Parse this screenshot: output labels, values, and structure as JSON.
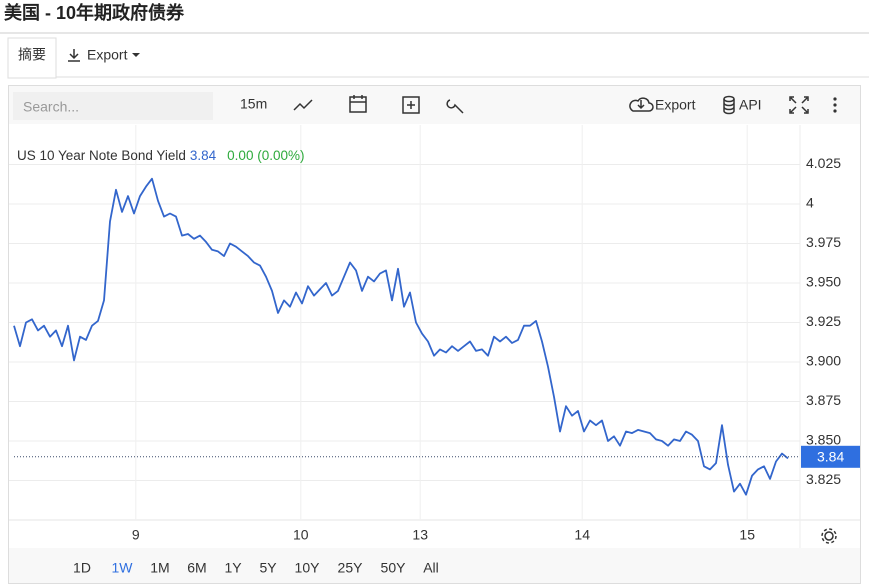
{
  "title": "美国 - 10年期政府债券",
  "tabs": [
    "摘要",
    "Export"
  ],
  "toolbar": {
    "search_placeholder": "Search...",
    "interval": "15m",
    "export": "Export",
    "api": "API"
  },
  "ranges": [
    "1D",
    "1W",
    "1M",
    "6M",
    "1Y",
    "5Y",
    "10Y",
    "25Y",
    "50Y",
    "All"
  ],
  "selected_range": "1W",
  "chart_data": {
    "type": "line",
    "series": [
      {
        "name": "US 10 Year Note Bond Yield",
        "color": "#3366cc",
        "last_value": 3.84,
        "change_label": "0.00 (0.00%)",
        "x": [
          0,
          1,
          2,
          3,
          4,
          5,
          6,
          7,
          8,
          9,
          10,
          11,
          12,
          13,
          14,
          15,
          16,
          17,
          18,
          19,
          20,
          21,
          22,
          23,
          24,
          25,
          26,
          27,
          28,
          29,
          30,
          31,
          32,
          33,
          34,
          35,
          36,
          37,
          38,
          39,
          40,
          41,
          42,
          43,
          44,
          45,
          46,
          47,
          48,
          49,
          50,
          51,
          52,
          53,
          54,
          55,
          56,
          57,
          58,
          59,
          60,
          61,
          62,
          63,
          64,
          65,
          66,
          67,
          68,
          69,
          70,
          71,
          72,
          73,
          74,
          75,
          76,
          77,
          78,
          79,
          80,
          81,
          82,
          83,
          84,
          85,
          86,
          87,
          88,
          89,
          90,
          91,
          92,
          93,
          94,
          95,
          96,
          97,
          98,
          99,
          100,
          101,
          102,
          103,
          104,
          105,
          106,
          107,
          108,
          109,
          110,
          111,
          112,
          113,
          114,
          115,
          116,
          117,
          118,
          119,
          120,
          121,
          122,
          123,
          124,
          125,
          126,
          127,
          128,
          129
        ],
        "values": [
          3.923,
          3.91,
          3.925,
          3.927,
          3.92,
          3.923,
          3.916,
          3.92,
          3.91,
          3.923,
          3.901,
          3.916,
          3.914,
          3.923,
          3.926,
          3.939,
          3.989,
          4.009,
          3.995,
          4.005,
          3.994,
          4.005,
          4.011,
          4.016,
          4.002,
          3.992,
          3.994,
          3.992,
          3.98,
          3.981,
          3.978,
          3.98,
          3.976,
          3.971,
          3.97,
          3.967,
          3.975,
          3.973,
          3.97,
          3.967,
          3.963,
          3.961,
          3.954,
          3.945,
          3.931,
          3.939,
          3.935,
          3.944,
          3.937,
          3.948,
          3.942,
          3.946,
          3.95,
          3.942,
          3.945,
          3.954,
          3.963,
          3.958,
          3.945,
          3.954,
          3.951,
          3.956,
          3.958,
          3.939,
          3.959,
          3.935,
          3.944,
          3.925,
          3.918,
          3.913,
          3.904,
          3.908,
          3.906,
          3.91,
          3.907,
          3.91,
          3.913,
          3.907,
          3.908,
          3.904,
          3.916,
          3.913,
          3.916,
          3.912,
          3.914,
          3.923,
          3.923,
          3.926,
          3.913,
          3.897,
          3.878,
          3.856,
          3.872,
          3.866,
          3.869,
          3.856,
          3.863,
          3.86,
          3.863,
          3.85,
          3.853,
          3.847,
          3.856,
          3.855,
          3.857,
          3.856,
          3.855,
          3.851,
          3.85,
          3.847,
          3.851,
          3.85,
          3.856,
          3.854,
          3.85,
          3.834,
          3.832,
          3.836,
          3.86,
          3.835,
          3.818,
          3.823,
          3.816,
          3.828,
          3.832,
          3.834,
          3.826,
          3.837,
          3.842,
          3.839
        ]
      }
    ],
    "xlim": [
      0,
      130.5
    ],
    "xticks": [
      {
        "value": 20.3,
        "label": "9"
      },
      {
        "value": 47.8,
        "label": "10"
      },
      {
        "value": 67.7,
        "label": "13"
      },
      {
        "value": 94.7,
        "label": "14"
      },
      {
        "value": 122.2,
        "label": "15"
      }
    ],
    "ylim": [
      3.8,
      4.05
    ],
    "yticks": [
      4.025,
      4,
      3.975,
      {
        "value": 3.95,
        "label": "3.950"
      },
      3.925,
      {
        "value": 3.9,
        "label": "3.900"
      },
      3.875,
      {
        "value": 3.85,
        "label": "3.850"
      },
      3.825
    ],
    "grid": true
  }
}
